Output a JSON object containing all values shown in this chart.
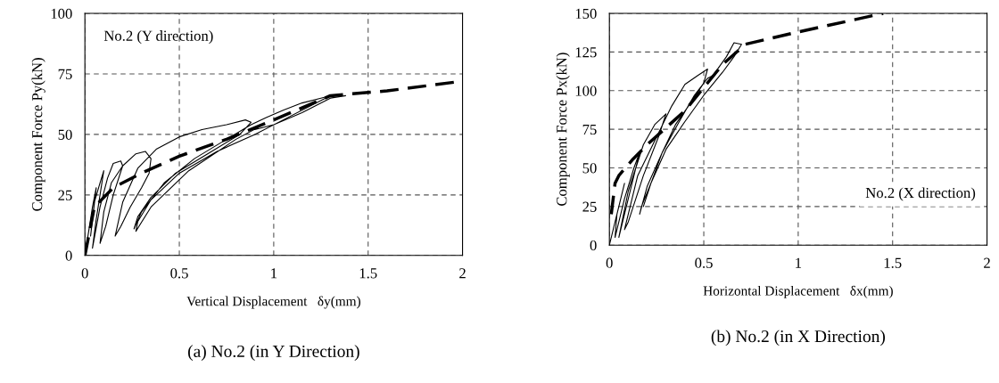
{
  "chart_data": [
    {
      "type": "line",
      "title": "(a) No.2 (in Y Direction)",
      "xlabel": "Vertical Displacement   δy(mm)",
      "ylabel": "Component Force Py(kN)",
      "annotations": [
        "No.2 (Y direction)"
      ],
      "xlim": [
        0,
        2
      ],
      "ylim": [
        0,
        100
      ],
      "xticks": [
        0,
        0.5,
        1,
        1.5,
        2
      ],
      "yticks": [
        0,
        25,
        50,
        75,
        100
      ],
      "grid": true,
      "series": [
        {
          "color": "#000000",
          "line_style": "solid",
          "x": [
            0,
            0.02,
            0.04,
            0.06,
            0.03,
            0.05,
            0.08,
            0.1,
            0.06,
            0.04,
            0.08,
            0.12,
            0.15,
            0.19,
            0.2,
            0.15,
            0.11,
            0.08,
            0.1,
            0.14,
            0.2,
            0.27,
            0.32,
            0.35,
            0.34,
            0.3,
            0.24,
            0.19,
            0.16,
            0.2,
            0.28,
            0.38,
            0.5,
            0.62,
            0.75,
            0.85,
            0.88,
            0.82,
            0.65,
            0.48,
            0.35,
            0.28,
            0.26,
            0.3,
            0.42,
            0.58,
            0.75,
            0.88,
            0.96,
            1.05,
            1.15,
            1.25,
            1.3,
            1.2,
            1.05,
            0.9,
            0.7,
            0.5,
            0.35,
            0.28,
            0.27,
            0.35,
            0.55,
            0.8,
            0.92,
            0.9,
            1.0,
            1.15,
            1.3,
            1.38
          ],
          "values": [
            0,
            10,
            20,
            28,
            8,
            22,
            30,
            35,
            15,
            3,
            20,
            32,
            38,
            39,
            37,
            25,
            12,
            5,
            18,
            30,
            37,
            42,
            43,
            40,
            34,
            28,
            20,
            12,
            8,
            22,
            36,
            44,
            49,
            52,
            54,
            56,
            55,
            50,
            42,
            34,
            24,
            16,
            11,
            18,
            30,
            40,
            48,
            54,
            57,
            60,
            63,
            65,
            66,
            62,
            56,
            50,
            43,
            34,
            23,
            14,
            10,
            20,
            35,
            48,
            53,
            52,
            54,
            59,
            65,
            66
          ]
        },
        {
          "color": "#000000",
          "line_style": "dashed",
          "x": [
            0,
            0.05,
            0.15,
            0.3,
            0.5,
            0.75,
            1.0,
            1.3,
            1.6,
            2.0
          ],
          "values": [
            0,
            20,
            28,
            34,
            41,
            48,
            56,
            66,
            68,
            72
          ]
        }
      ]
    },
    {
      "type": "line",
      "title": "(b) No.2 (in X Direction)",
      "xlabel": "Horizontal Displacement   δx(mm)",
      "ylabel": "Component Force Px(kN)",
      "annotations": [
        "No.2 (X direction)"
      ],
      "xlim": [
        0,
        2
      ],
      "ylim": [
        0,
        150
      ],
      "xticks": [
        0,
        0.5,
        1,
        1.5,
        2
      ],
      "yticks": [
        0,
        25,
        50,
        75,
        100,
        125,
        150
      ],
      "grid": true,
      "series": [
        {
          "color": "#000000",
          "line_style": "solid",
          "x": [
            0,
            0.02,
            0.05,
            0.08,
            0.04,
            0.03,
            0.08,
            0.13,
            0.16,
            0.12,
            0.07,
            0.05,
            0.1,
            0.18,
            0.24,
            0.3,
            0.26,
            0.18,
            0.1,
            0.08,
            0.15,
            0.25,
            0.33,
            0.4,
            0.47,
            0.52,
            0.5,
            0.43,
            0.35,
            0.28,
            0.22,
            0.17,
            0.16,
            0.2,
            0.28,
            0.37,
            0.45,
            0.52,
            0.55,
            0.62,
            0.66,
            0.7,
            0.66,
            0.6,
            0.5,
            0.4,
            0.3,
            0.22,
            0.18
          ],
          "values": [
            0,
            10,
            25,
            40,
            20,
            5,
            30,
            50,
            60,
            40,
            15,
            5,
            35,
            65,
            78,
            85,
            70,
            45,
            15,
            10,
            45,
            70,
            90,
            104,
            110,
            114,
            105,
            92,
            78,
            60,
            40,
            25,
            20,
            38,
            60,
            80,
            97,
            108,
            110,
            122,
            131,
            130,
            122,
            112,
            97,
            80,
            62,
            40,
            25
          ]
        },
        {
          "color": "#000000",
          "line_style": "dashed",
          "x": [
            0.01,
            0.03,
            0.05,
            0.12,
            0.2,
            0.3,
            0.4,
            0.5,
            0.6,
            0.72,
            1.0,
            1.45
          ],
          "values": [
            20,
            40,
            45,
            55,
            65,
            76,
            87,
            102,
            117,
            130,
            138,
            150
          ]
        }
      ]
    }
  ]
}
